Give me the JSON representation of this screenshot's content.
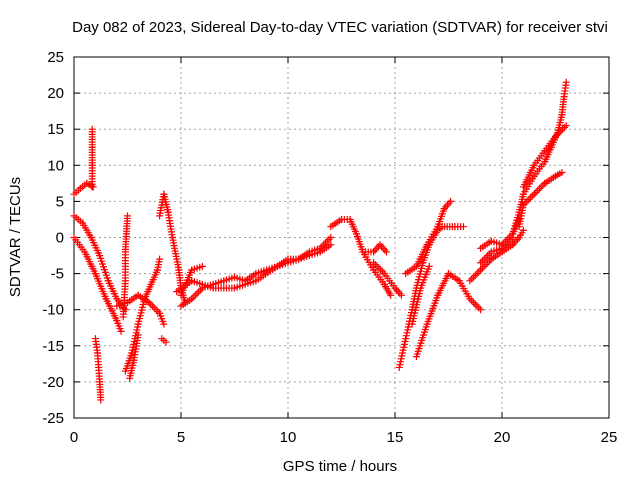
{
  "chart_data": {
    "type": "scatter",
    "title": "Day 082 of 2023, Sidereal Day-to-day VTEC variation (SDTVAR) for receiver stvi",
    "xlabel": "GPS time / hours",
    "ylabel": "SDTVAR / TECUs",
    "xlim": [
      0,
      25
    ],
    "ylim": [
      -25,
      25
    ],
    "x_ticks": [
      0,
      5,
      10,
      15,
      20,
      25
    ],
    "y_ticks": [
      -25,
      -20,
      -15,
      -10,
      -5,
      0,
      5,
      10,
      15,
      20,
      25
    ],
    "grid": true,
    "marker": "+",
    "color": "#ff0000",
    "segments": [
      [
        [
          0.0,
          3.0
        ],
        [
          0.4,
          2.0
        ],
        [
          0.8,
          0.0
        ],
        [
          1.2,
          -2.5
        ],
        [
          1.6,
          -6.0
        ],
        [
          2.0,
          -8.5
        ],
        [
          2.4,
          -10.0
        ]
      ],
      [
        [
          0.0,
          0.0
        ],
        [
          0.5,
          -2.0
        ],
        [
          1.0,
          -5.0
        ],
        [
          1.5,
          -8.5
        ],
        [
          2.0,
          -11.5
        ],
        [
          2.2,
          -13.0
        ]
      ],
      [
        [
          0.0,
          6.0
        ],
        [
          0.3,
          6.8
        ],
        [
          0.6,
          7.5
        ],
        [
          0.9,
          7.0
        ]
      ],
      [
        [
          0.85,
          7.0
        ],
        [
          0.85,
          10.0
        ],
        [
          0.85,
          12.5
        ],
        [
          0.85,
          15.0
        ]
      ],
      [
        [
          1.0,
          -14.0
        ],
        [
          1.1,
          -16.0
        ],
        [
          1.15,
          -18.0
        ],
        [
          1.2,
          -20.0
        ],
        [
          1.25,
          -22.5
        ]
      ],
      [
        [
          2.3,
          -11.0
        ],
        [
          2.4,
          -6.0
        ],
        [
          2.4,
          -2.0
        ],
        [
          2.45,
          0.5
        ],
        [
          2.5,
          3.0
        ]
      ],
      [
        [
          2.4,
          -18.5
        ],
        [
          2.7,
          -16.0
        ],
        [
          3.0,
          -12.0
        ],
        [
          3.3,
          -8.5
        ],
        [
          3.6,
          -6.5
        ],
        [
          3.9,
          -4.5
        ],
        [
          4.0,
          -3.0
        ]
      ],
      [
        [
          2.6,
          -19.5
        ],
        [
          2.8,
          -17.0
        ],
        [
          3.0,
          -13.5
        ]
      ],
      [
        [
          2.0,
          -9.5
        ],
        [
          2.5,
          -9.0
        ],
        [
          3.0,
          -8.0
        ],
        [
          3.5,
          -9.0
        ],
        [
          4.0,
          -10.5
        ],
        [
          4.2,
          -12.0
        ]
      ],
      [
        [
          4.0,
          3.0
        ],
        [
          4.2,
          6.0
        ],
        [
          4.4,
          3.5
        ],
        [
          4.6,
          0.0
        ],
        [
          4.9,
          -4.5
        ],
        [
          5.0,
          -7.0
        ],
        [
          5.2,
          -9.0
        ]
      ],
      [
        [
          4.1,
          -14.0
        ],
        [
          4.3,
          -14.5
        ]
      ],
      [
        [
          5.0,
          -9.5
        ],
        [
          5.5,
          -8.5
        ],
        [
          6.0,
          -7.0
        ],
        [
          6.5,
          -6.5
        ],
        [
          7.0,
          -6.0
        ],
        [
          7.5,
          -5.5
        ],
        [
          8.0,
          -6.0
        ],
        [
          8.5,
          -5.0
        ],
        [
          9.0,
          -4.5
        ],
        [
          9.5,
          -4.0
        ],
        [
          10.0,
          -3.0
        ],
        [
          10.5,
          -3.0
        ],
        [
          11.0,
          -2.0
        ],
        [
          11.5,
          -1.5
        ],
        [
          12.0,
          0.0
        ]
      ],
      [
        [
          4.8,
          -7.5
        ],
        [
          5.5,
          -6.0
        ],
        [
          6.5,
          -7.0
        ],
        [
          7.5,
          -7.0
        ],
        [
          8.5,
          -6.0
        ],
        [
          9.5,
          -4.0
        ],
        [
          10.5,
          -3.0
        ],
        [
          11.5,
          -2.0
        ],
        [
          12.0,
          -1.0
        ]
      ],
      [
        [
          5.0,
          -8.0
        ],
        [
          5.5,
          -4.5
        ],
        [
          6.0,
          -4.0
        ]
      ],
      [
        [
          12.0,
          1.5
        ],
        [
          12.5,
          2.5
        ],
        [
          12.9,
          2.5
        ],
        [
          13.2,
          0.5
        ],
        [
          13.5,
          -2.0
        ],
        [
          14.0,
          -4.5
        ],
        [
          14.5,
          -6.5
        ],
        [
          14.8,
          -8.0
        ]
      ],
      [
        [
          14.0,
          -3.5
        ],
        [
          14.5,
          -5.0
        ],
        [
          15.0,
          -7.0
        ],
        [
          15.3,
          -8.0
        ]
      ],
      [
        [
          13.5,
          -2.0
        ],
        [
          14.0,
          -2.0
        ],
        [
          14.3,
          -1.0
        ],
        [
          14.6,
          -2.0
        ]
      ],
      [
        [
          15.2,
          -18.0
        ],
        [
          15.5,
          -14.0
        ],
        [
          15.8,
          -10.0
        ],
        [
          16.0,
          -7.0
        ],
        [
          16.3,
          -3.5
        ],
        [
          16.6,
          -1.0
        ],
        [
          17.0,
          1.0
        ],
        [
          17.2,
          1.5
        ],
        [
          17.8,
          1.5
        ],
        [
          18.2,
          1.5
        ]
      ],
      [
        [
          15.5,
          -5.0
        ],
        [
          16.0,
          -4.0
        ],
        [
          16.5,
          -1.0
        ],
        [
          17.0,
          1.5
        ],
        [
          17.3,
          4.0
        ],
        [
          17.6,
          5.0
        ]
      ],
      [
        [
          15.8,
          -12.0
        ],
        [
          16.2,
          -7.0
        ],
        [
          16.6,
          -4.0
        ]
      ],
      [
        [
          16.0,
          -16.5
        ],
        [
          16.5,
          -12.0
        ],
        [
          17.0,
          -8.0
        ],
        [
          17.5,
          -5.0
        ],
        [
          18.0,
          -6.0
        ],
        [
          18.5,
          -8.5
        ],
        [
          19.0,
          -10.0
        ]
      ],
      [
        [
          18.5,
          -6.0
        ],
        [
          19.0,
          -4.5
        ],
        [
          19.5,
          -3.0
        ],
        [
          20.0,
          -2.0
        ],
        [
          20.5,
          -1.0
        ]
      ],
      [
        [
          19.0,
          -3.5
        ],
        [
          19.5,
          -2.0
        ],
        [
          20.0,
          -1.5
        ],
        [
          20.5,
          0.0
        ]
      ],
      [
        [
          19.0,
          -1.5
        ],
        [
          19.5,
          -0.5
        ],
        [
          20.0,
          -1.0
        ],
        [
          20.5,
          0.5
        ],
        [
          20.8,
          2.5
        ]
      ],
      [
        [
          20.5,
          0.5
        ],
        [
          20.8,
          3.5
        ],
        [
          21.0,
          6.0
        ],
        [
          21.5,
          8.5
        ],
        [
          22.0,
          10.5
        ],
        [
          22.3,
          12.5
        ],
        [
          22.6,
          14.5
        ],
        [
          22.8,
          17.0
        ],
        [
          22.9,
          19.5
        ],
        [
          23.0,
          21.5
        ]
      ],
      [
        [
          20.8,
          1.5
        ],
        [
          21.0,
          4.5
        ],
        [
          21.5,
          6.0
        ],
        [
          22.0,
          7.5
        ],
        [
          22.5,
          8.5
        ],
        [
          22.8,
          9.0
        ]
      ],
      [
        [
          21.0,
          7.0
        ],
        [
          21.5,
          10.0
        ],
        [
          22.0,
          12.0
        ],
        [
          22.5,
          14.0
        ],
        [
          23.0,
          15.5
        ]
      ],
      [
        [
          20.5,
          -1.0
        ],
        [
          20.8,
          0.0
        ],
        [
          21.0,
          1.0
        ]
      ]
    ]
  }
}
